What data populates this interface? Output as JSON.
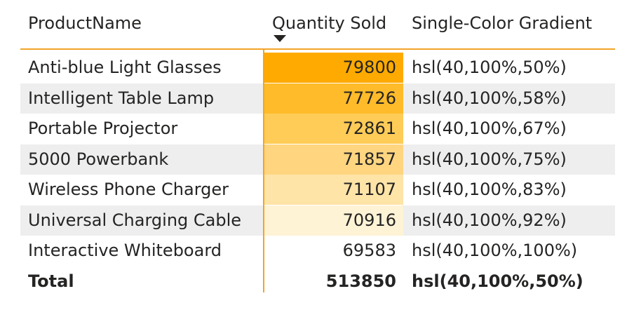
{
  "table": {
    "headers": {
      "product": "ProductName",
      "quantity": "Quantity Sold",
      "gradient": "Single-Color Gradient"
    },
    "sort": {
      "column": "Quantity Sold",
      "direction": "descending"
    },
    "rows": [
      {
        "product": "Anti-blue Light Glasses",
        "quantity": "79800",
        "gradient": "hsl(40,100%,50%)",
        "color": "#ffaa00"
      },
      {
        "product": "Intelligent Table Lamp",
        "quantity": "77726",
        "gradient": "hsl(40,100%,58%)",
        "color": "#ffbb29"
      },
      {
        "product": "Portable Projector",
        "quantity": "72861",
        "gradient": "hsl(40,100%,67%)",
        "color": "#ffcc57"
      },
      {
        "product": "5000 Powerbank",
        "quantity": "71857",
        "gradient": "hsl(40,100%,75%)",
        "color": "#ffd580"
      },
      {
        "product": "Wireless Phone Charger",
        "quantity": "71107",
        "gradient": "hsl(40,100%,83%)",
        "color": "#ffe4a8"
      },
      {
        "product": "Universal Charging Cable",
        "quantity": "70916",
        "gradient": "hsl(40,100%,92%)",
        "color": "#fff3d6"
      },
      {
        "product": "Interactive Whiteboard",
        "quantity": "69583",
        "gradient": "hsl(40,100%,100%)",
        "color": "#ffffff"
      }
    ],
    "total": {
      "product": "Total",
      "quantity": "513850",
      "gradient": "hsl(40,100%,50%)"
    },
    "accent_color": "#f2a427",
    "alt_row_color": "#eeeeee"
  }
}
